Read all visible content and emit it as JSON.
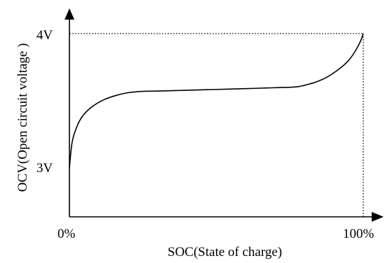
{
  "chart_data": {
    "type": "line",
    "title": "",
    "xlabel": "SOC(State of charge)",
    "ylabel": "OCV(Open circuit voltage )",
    "x_unit": "%",
    "xlim": [
      0,
      100
    ],
    "ylim": [
      3,
      4
    ],
    "x_tick_labels": [
      "0%",
      "100%"
    ],
    "y_tick_labels": [
      "3V",
      "4V"
    ],
    "y_axis_reference_lines": "dotted",
    "grid": false,
    "legend": "none",
    "series": [
      {
        "x": [
          0,
          1,
          3,
          5,
          8,
          12,
          16,
          20,
          25,
          30,
          40,
          50,
          60,
          70,
          75,
          78,
          80,
          84,
          88,
          92,
          95,
          97,
          99,
          100
        ],
        "y": [
          3.0,
          3.2,
          3.33,
          3.4,
          3.46,
          3.51,
          3.54,
          3.56,
          3.57,
          3.572,
          3.578,
          3.584,
          3.59,
          3.597,
          3.6,
          3.605,
          3.615,
          3.64,
          3.68,
          3.74,
          3.8,
          3.86,
          3.94,
          4.0
        ]
      }
    ]
  }
}
